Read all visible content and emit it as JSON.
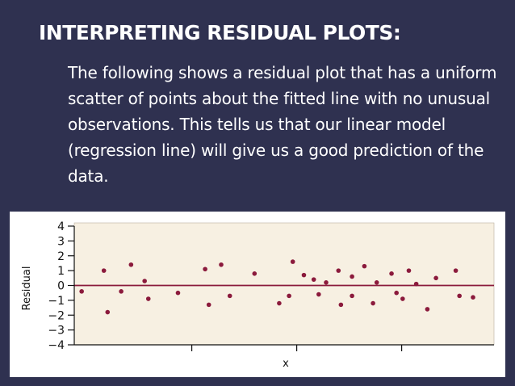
{
  "slide": {
    "title": "INTERPRETING RESIDUAL PLOTS:",
    "body": "The following shows a residual plot that has a uniform scatter of points about the fitted line with no unusual observations.  This tells us that our linear model (regression line) will give us a good prediction of the data."
  },
  "colors": {
    "background": "#2f3150",
    "text": "#ffffff",
    "plot_panel": "#f7f0e2",
    "point": "#8b1a3c",
    "zero_line": "#8b1a3c"
  },
  "chart_data": {
    "type": "scatter",
    "xlabel": "x",
    "ylabel": "Residual",
    "ylim": [
      -4,
      4
    ],
    "yticks": [
      "4",
      "3",
      "2",
      "1",
      "0",
      "−1",
      "−2",
      "−3",
      "−4"
    ],
    "xlim": [
      0,
      34
    ],
    "xticks_labeled": false,
    "grid": false,
    "reference_line_y": 0,
    "points": [
      {
        "x": 0.6,
        "y": -0.4
      },
      {
        "x": 2.4,
        "y": 1.0
      },
      {
        "x": 2.7,
        "y": -1.8
      },
      {
        "x": 3.8,
        "y": -0.4
      },
      {
        "x": 4.6,
        "y": 1.4
      },
      {
        "x": 5.7,
        "y": 0.3
      },
      {
        "x": 6.0,
        "y": -0.9
      },
      {
        "x": 8.4,
        "y": -0.5
      },
      {
        "x": 10.6,
        "y": 1.1
      },
      {
        "x": 10.9,
        "y": -1.3
      },
      {
        "x": 11.9,
        "y": 1.4
      },
      {
        "x": 12.6,
        "y": -0.7
      },
      {
        "x": 14.6,
        "y": 0.8
      },
      {
        "x": 16.6,
        "y": -1.2
      },
      {
        "x": 17.4,
        "y": -0.7
      },
      {
        "x": 17.7,
        "y": 1.6
      },
      {
        "x": 18.6,
        "y": 0.7
      },
      {
        "x": 19.4,
        "y": 0.4
      },
      {
        "x": 19.8,
        "y": -0.6
      },
      {
        "x": 20.4,
        "y": 0.2
      },
      {
        "x": 21.4,
        "y": 1.0
      },
      {
        "x": 21.6,
        "y": -1.3
      },
      {
        "x": 22.5,
        "y": 0.6
      },
      {
        "x": 22.5,
        "y": -0.7
      },
      {
        "x": 23.5,
        "y": 1.3
      },
      {
        "x": 24.2,
        "y": -1.2
      },
      {
        "x": 24.5,
        "y": 0.2
      },
      {
        "x": 25.7,
        "y": 0.8
      },
      {
        "x": 26.1,
        "y": -0.5
      },
      {
        "x": 26.6,
        "y": -0.9
      },
      {
        "x": 27.1,
        "y": 1.0
      },
      {
        "x": 27.7,
        "y": 0.1
      },
      {
        "x": 28.6,
        "y": -1.6
      },
      {
        "x": 29.3,
        "y": 0.5
      },
      {
        "x": 30.9,
        "y": 1.0
      },
      {
        "x": 31.2,
        "y": -0.7
      },
      {
        "x": 32.3,
        "y": -0.8
      }
    ]
  }
}
